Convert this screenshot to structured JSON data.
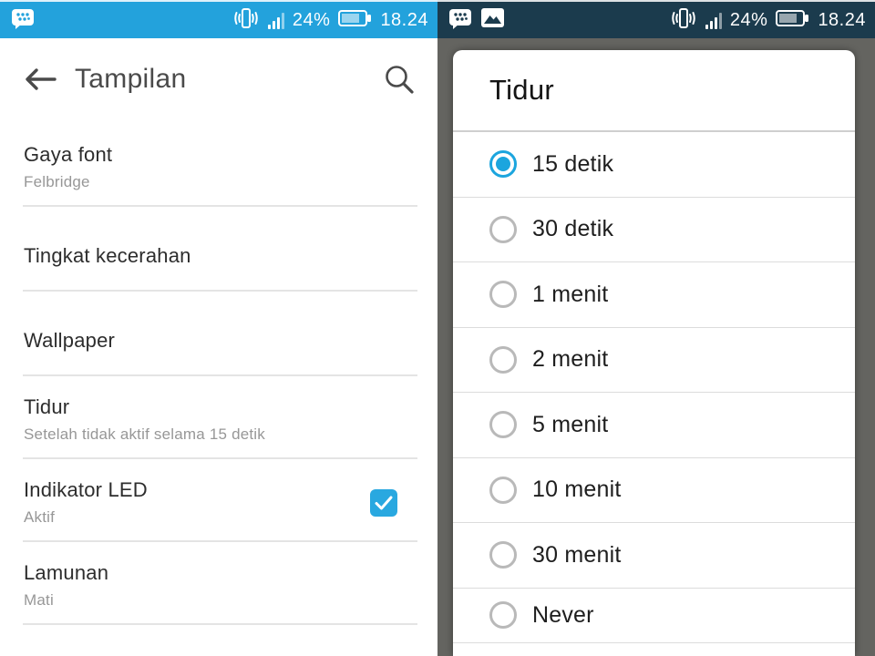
{
  "left_screen": {
    "status_bar": {
      "battery_percent": "24%",
      "time": "18.24",
      "icons": [
        "bbm-chat-icon",
        "vibrate-icon",
        "signal-strength-icon",
        "battery-icon"
      ]
    },
    "header": {
      "title": "Tampilan",
      "icons": [
        "back-arrow-icon",
        "search-icon"
      ]
    },
    "items": [
      {
        "title": "Gaya font",
        "subtitle": "Felbridge",
        "checked": false
      },
      {
        "title": "Tingkat kecerahan",
        "subtitle": null,
        "checked": false
      },
      {
        "title": "Wallpaper",
        "subtitle": null,
        "checked": false
      },
      {
        "title": "Tidur",
        "subtitle": "Setelah tidak aktif selama 15 detik",
        "checked": false
      },
      {
        "title": "Indikator LED",
        "subtitle": "Aktif",
        "checked": true
      },
      {
        "title": "Lamunan",
        "subtitle": "Mati",
        "checked": false
      }
    ]
  },
  "right_screen": {
    "status_bar": {
      "battery_percent": "24%",
      "time": "18.24",
      "icons": [
        "bbm-chat-icon",
        "gallery-icon",
        "vibrate-icon",
        "signal-strength-icon",
        "battery-icon"
      ]
    },
    "dialog": {
      "title": "Tidur",
      "options": [
        {
          "label": "15 detik",
          "selected": true
        },
        {
          "label": "30 detik",
          "selected": false
        },
        {
          "label": "1 menit",
          "selected": false
        },
        {
          "label": "2 menit",
          "selected": false
        },
        {
          "label": "5 menit",
          "selected": false
        },
        {
          "label": "10 menit",
          "selected": false
        },
        {
          "label": "30 menit",
          "selected": false
        },
        {
          "label": "Never",
          "selected": false
        }
      ]
    }
  },
  "colors": {
    "left_status_bar": "#23A2DC",
    "right_status_bar": "#1B3B4D",
    "dialog_backdrop": "#646460",
    "accent_blue": "#1EA5DF",
    "checkbox_blue": "#29A8E0",
    "divider": "#E4E4E4",
    "header_text": "#4A4A4A",
    "item_title_text": "#2D2D2D",
    "subtitle_text": "#979797"
  }
}
